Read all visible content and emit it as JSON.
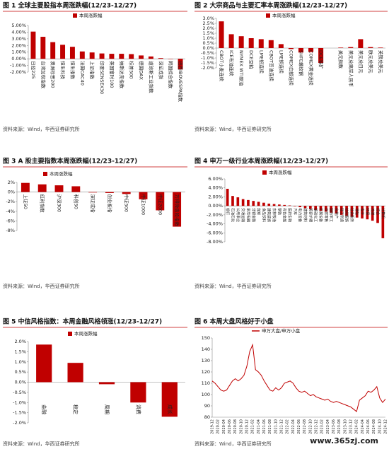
{
  "chart_data": [
    {
      "type": "bar",
      "title": "图 1  全球主要股指本周涨跌幅(12/23-12/27)",
      "source": "资料来源：Wind，华西证券研究所",
      "categories": [
        "日经225",
        "台湾加权指数",
        "澳洲标普200",
        "恒生科技",
        "恒生指数",
        "法国CAC40",
        "上证指数",
        "印度SENSEX30",
        "英国富时100",
        "纳斯达克指数",
        "标普500",
        "德国DAX",
        "道琼斯工业指数",
        "深证成指",
        "韩国综合指数",
        "巴西IBOVESPA指数"
      ],
      "series": [
        {
          "name": "本周涨跌幅",
          "color": "#c00000",
          "values": [
            4.08,
            3.3,
            2.5,
            2.1,
            1.8,
            1.1,
            0.95,
            0.8,
            0.75,
            0.75,
            0.7,
            0.5,
            0.35,
            0.1,
            -0.05,
            -1.6
          ]
        }
      ],
      "ylim": [
        -2,
        5
      ],
      "yticks": [
        {
          "value": 5,
          "label": "5.00%"
        },
        {
          "value": 4,
          "label": "4.00%"
        },
        {
          "value": 3,
          "label": "3.00%"
        },
        {
          "value": 2,
          "label": "2.00%"
        },
        {
          "value": 1,
          "label": "1.00%"
        },
        {
          "value": 0,
          "label": "0.00%"
        },
        {
          "value": -1,
          "label": "-1.00%"
        },
        {
          "value": -2,
          "label": "-2.00%"
        }
      ]
    },
    {
      "type": "bar",
      "title": "图 2  大宗商品与主要汇率本周涨跌幅(12/23-12/27)",
      "source": "资料来源：Wind，华西证券研究所",
      "categories": [
        "CBOT小麦连续",
        "ICE布油连续",
        "NYMEX WTI原油",
        "DCE豆粕",
        "LME铝连续",
        "CBOT豆油连续",
        "LME铜连续",
        "COMEX白银连续",
        "SHFE螺纹钢",
        "COMEX黄金连续",
        "DCE铁矿",
        null,
        "美元指数",
        "美元兑离岸人民币",
        "美元兑日元",
        "欧元兑美元",
        "英镑兑美元"
      ],
      "series": [
        {
          "name": "本周涨跌幅",
          "color": "#c00000",
          "values": [
            2.7,
            1.4,
            1.2,
            1.0,
            0.9,
            0.8,
            0.4,
            -0.1,
            -0.45,
            -0.4,
            -1.5,
            null,
            0.05,
            0.1,
            0.9,
            0.1,
            0.05
          ]
        }
      ],
      "ylim": [
        -2,
        3
      ],
      "yticks": [
        {
          "value": 3,
          "label": "3.0%"
        },
        {
          "value": 2.5,
          "label": "2.5%"
        },
        {
          "value": 2,
          "label": "2.0%"
        },
        {
          "value": 1.5,
          "label": "1.5%"
        },
        {
          "value": 1,
          "label": "1.0%"
        },
        {
          "value": 0.5,
          "label": "0.5%"
        },
        {
          "value": 0,
          "label": "0.0%"
        },
        {
          "value": -0.5,
          "label": "-0.5%"
        },
        {
          "value": -1,
          "label": "-1.0%"
        },
        {
          "value": -1.5,
          "label": "-1.5%"
        },
        {
          "value": -2,
          "label": "-2.0%"
        }
      ]
    },
    {
      "type": "bar",
      "title": "图 3  A 股主要指数本周涨跌幅(12/23-12/27)",
      "source": "资料来源：Wind，华西证券研究所",
      "categories": [
        "上证50",
        "红利指数",
        "沪深300",
        "科创50",
        "深证成指",
        "创业板指",
        "中证500",
        "中证1000",
        "中证2000",
        "万得微盘股指数"
      ],
      "series": [
        {
          "name": "本周涨跌幅",
          "color": "#c00000",
          "values": [
            1.9,
            1.6,
            1.4,
            1.2,
            -0.1,
            -0.2,
            -0.4,
            -1.5,
            -3.8,
            -7.2
          ]
        }
      ],
      "ylim": [
        -8,
        2
      ],
      "yticks": [
        {
          "value": 2,
          "label": "2%"
        },
        {
          "value": 0,
          "label": "0%"
        },
        {
          "value": -2,
          "label": "-2%"
        },
        {
          "value": -4,
          "label": "-4%"
        },
        {
          "value": -6,
          "label": "-6%"
        },
        {
          "value": -8,
          "label": "-8%"
        }
      ]
    },
    {
      "type": "bar",
      "title": "图 4  申万一级行业本周涨跌幅(12/23-12/27)",
      "source": "资料来源：Wind，华西证券研究所",
      "categories": [
        "银行",
        "石油石化",
        "公用事业",
        "交通运输",
        "家用电器",
        "非银金融",
        "煤炭",
        "食品饮料",
        "建筑装饰",
        "农林牧渔",
        "钢铁",
        "有色金属",
        "医药生物",
        "汽车",
        "电力设备",
        "建筑材料",
        "美容护理",
        "基础化工",
        "机械设备",
        "商贸零售",
        "国防军工",
        "房地产",
        "轻工制造",
        "纺织服饰",
        "社会服务",
        "通信",
        "电子",
        "环保",
        "传媒",
        "综合",
        "计算机"
      ],
      "series": [
        {
          "name": "本周涨跌幅",
          "color": "#c00000",
          "values": [
            3.8,
            2.2,
            1.9,
            1.5,
            1.3,
            1.1,
            0.9,
            0.7,
            0.5,
            0.4,
            0.3,
            0.2,
            0.1,
            -0.1,
            -0.3,
            -0.5,
            -0.7,
            -0.9,
            -1.1,
            -1.3,
            -1.5,
            -1.7,
            -2.0,
            -2.2,
            -2.4,
            -2.6,
            -2.8,
            -3.0,
            -3.3,
            -3.8,
            -7.2
          ]
        }
      ],
      "ylim": [
        -8,
        6
      ],
      "yticks": [
        {
          "value": 6,
          "label": "6.00%"
        },
        {
          "value": 4,
          "label": "4.00%"
        },
        {
          "value": 2,
          "label": "2.00%"
        },
        {
          "value": 0,
          "label": "0.00%"
        },
        {
          "value": -2,
          "label": "-2.00%"
        },
        {
          "value": -4,
          "label": "-4.00%"
        },
        {
          "value": -6,
          "label": "-6.00%"
        },
        {
          "value": -8,
          "label": "-8.00%"
        }
      ]
    },
    {
      "type": "bar",
      "title": "图 5  中信风格指数：本周金融风格领涨(12/23-12/27)",
      "source": "资料来源：Wind，华西证券研究所",
      "categories": [
        "金融",
        "稳定",
        "周期",
        "消费",
        "成长"
      ],
      "series": [
        {
          "name": "本周涨跌幅",
          "color": "#c00000",
          "values": [
            1.85,
            0.95,
            -0.1,
            -1.0,
            -1.7
          ]
        }
      ],
      "ylim": [
        -2,
        2
      ],
      "yticks": [
        {
          "value": 2,
          "label": "2.0%"
        },
        {
          "value": 1.5,
          "label": "1.5%"
        },
        {
          "value": 1,
          "label": "1.0%"
        },
        {
          "value": 0.5,
          "label": "0.5%"
        },
        {
          "value": 0,
          "label": "0.0%"
        },
        {
          "value": -0.5,
          "label": "-0.5%"
        },
        {
          "value": -1,
          "label": "-1.0%"
        },
        {
          "value": -1.5,
          "label": "-1.5%"
        },
        {
          "value": -2,
          "label": "-2.0%"
        }
      ]
    },
    {
      "type": "line",
      "title": "图 6  本周大盘风格好于小盘",
      "source": "资料来源：Wind，华西证券研究所",
      "categories": [
        "2019-12",
        null,
        "2020-02",
        null,
        "2020-04",
        null,
        "2020-06",
        null,
        "2020-08",
        null,
        "2020-10",
        null,
        "2020-12",
        null,
        "2021-02",
        null,
        "2021-04",
        null,
        "2021-06",
        null,
        "2021-08",
        null,
        "2021-10",
        null,
        "2021-12",
        null,
        "2022-02",
        null,
        "2022-04",
        null,
        "2022-06",
        null,
        "2022-08",
        null,
        "2022-10",
        null,
        "2022-12",
        null,
        "2023-02",
        null,
        "2023-04",
        null,
        "2023-06",
        null,
        "2023-08",
        null,
        "2023-10",
        null,
        "2023-12",
        null,
        "2024-02",
        null,
        "2024-04",
        null,
        "2024-06",
        null,
        "2024-08",
        null,
        "2024-10",
        null,
        "2024-12"
      ],
      "series": [
        {
          "name": "申万大盘/申万小盘",
          "color": "#c00000",
          "values": [
            112,
            110,
            107,
            104,
            103,
            104,
            108,
            112,
            114,
            112,
            114,
            117,
            125,
            138,
            144,
            122,
            120,
            117,
            112,
            108,
            104,
            103,
            106,
            104,
            106,
            110,
            111,
            112,
            110,
            106,
            103,
            102,
            103,
            101,
            99,
            100,
            98,
            97,
            96,
            95,
            96,
            94,
            93,
            94,
            93,
            92,
            91,
            90,
            89,
            87,
            85,
            95,
            97,
            99,
            103,
            102,
            104,
            107,
            97,
            93,
            96
          ]
        }
      ],
      "ylim": [
        80,
        150
      ],
      "yticks": [
        150,
        140,
        130,
        120,
        110,
        100,
        90,
        80
      ]
    }
  ],
  "watermark": "www.365zj.com"
}
